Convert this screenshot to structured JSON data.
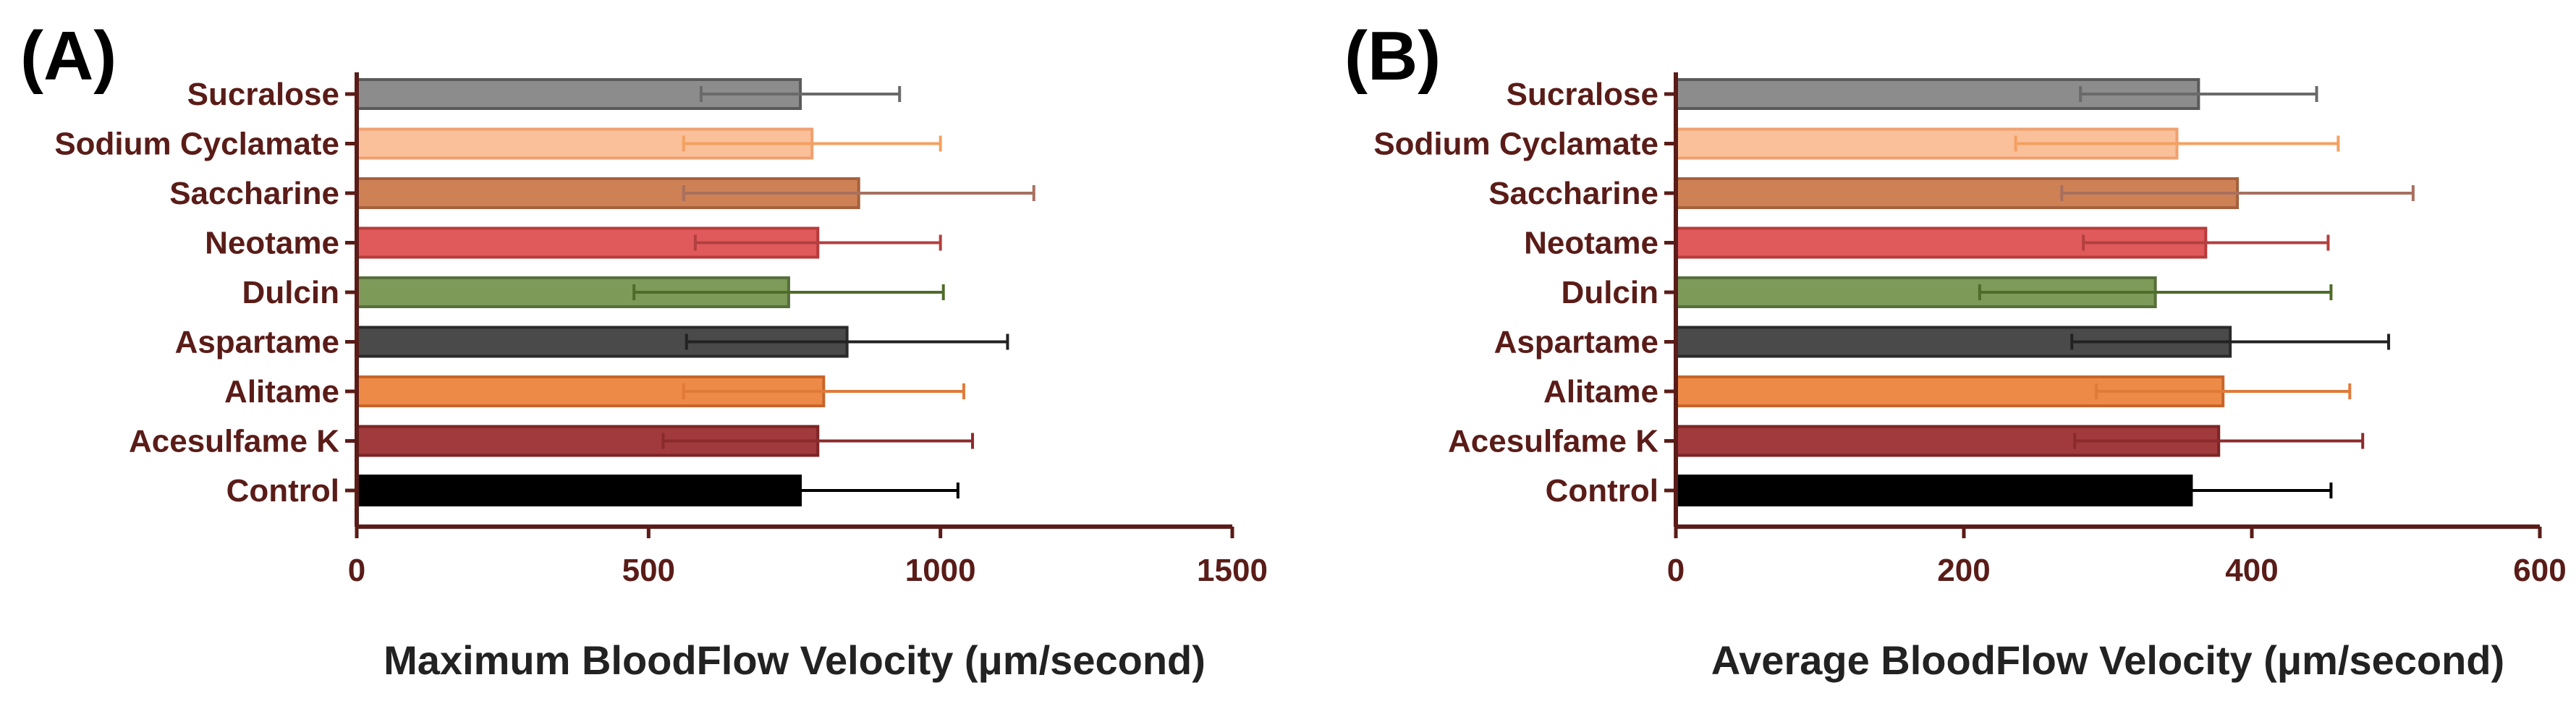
{
  "chart_data": [
    {
      "type": "bar",
      "orientation": "horizontal",
      "panel_label": "(A)",
      "title": "",
      "xlabel": "Maximum BloodFlow Velocity (μm/second)",
      "ylabel": "",
      "xlim": [
        0,
        1500
      ],
      "xticks": [
        "0",
        "500",
        "1000",
        "1500"
      ],
      "categories": [
        "Sucralose",
        "Sodium Cyclamate",
        "Saccharine",
        "Neotame",
        "Dulcin",
        "Aspartame",
        "Alitame",
        "Acesulfame K",
        "Control"
      ],
      "values": [
        760,
        780,
        860,
        790,
        740,
        840,
        800,
        790,
        760
      ],
      "error": [
        170,
        220,
        300,
        210,
        265,
        275,
        240,
        265,
        270
      ],
      "colors": [
        "#8c8c8c",
        "#f9c09a",
        "#cd8155",
        "#e05a5b",
        "#7d9a59",
        "#4a4a4a",
        "#ed8a47",
        "#a13a3c",
        "#000000"
      ],
      "edge_colors": [
        "#5a5a5a",
        "#f0a070",
        "#a5603c",
        "#b83b3c",
        "#566f3a",
        "#2a2a2a",
        "#c8652a",
        "#7d2426",
        "#000000"
      ],
      "error_colors": [
        "#6a6a6a",
        "#f4a060",
        "#a8705e",
        "#b24040",
        "#4f6c2a",
        "#222222",
        "#e07a3a",
        "#8a2a2c",
        "#000000"
      ]
    },
    {
      "type": "bar",
      "orientation": "horizontal",
      "panel_label": "(B)",
      "title": "",
      "xlabel": "Average BloodFlow Velocity (μm/second)",
      "ylabel": "",
      "xlim": [
        0,
        600
      ],
      "xticks": [
        "0",
        "200",
        "400",
        "600"
      ],
      "categories": [
        "Sucralose",
        "Sodium Cyclamate",
        "Saccharine",
        "Neotame",
        "Dulcin",
        "Aspartame",
        "Alitame",
        "Acesulfame K",
        "Control"
      ],
      "values": [
        363,
        348,
        390,
        368,
        333,
        385,
        380,
        377,
        358
      ],
      "error": [
        82,
        112,
        122,
        85,
        122,
        110,
        88,
        100,
        97
      ],
      "colors": [
        "#8c8c8c",
        "#f9c09a",
        "#cd8155",
        "#e05a5b",
        "#7d9a59",
        "#4a4a4a",
        "#ed8a47",
        "#a13a3c",
        "#000000"
      ],
      "edge_colors": [
        "#5a5a5a",
        "#f0a070",
        "#a5603c",
        "#b83b3c",
        "#566f3a",
        "#2a2a2a",
        "#c8652a",
        "#7d2426",
        "#000000"
      ],
      "error_colors": [
        "#6a6a6a",
        "#f4a060",
        "#a8705e",
        "#b24040",
        "#4f6c2a",
        "#222222",
        "#e07a3a",
        "#8a2a2c",
        "#000000"
      ]
    }
  ],
  "style": {
    "axis_color": "#5a1c18"
  }
}
